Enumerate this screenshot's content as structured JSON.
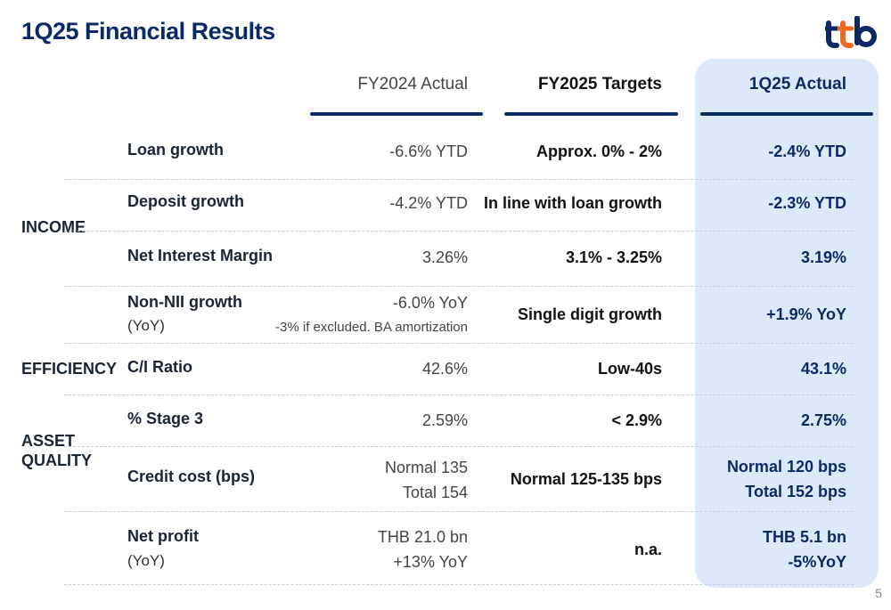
{
  "title": "1Q25 Financial Results",
  "logo_text": "ttb",
  "brand_color": "#0a2a66",
  "logo_colors": [
    "#0a2a66",
    "#f26a21"
  ],
  "highlight_color": "#dbe9fb",
  "columns": {
    "fy2024": "FY2024 Actual",
    "fy2025": "FY2025 Targets",
    "q125": "1Q25 Actual"
  },
  "categories": {
    "income": "INCOME",
    "efficiency": "EFFICIENCY",
    "asset_quality_1": "ASSET",
    "asset_quality_2": "QUALITY"
  },
  "rows": [
    {
      "metric": "Loan growth",
      "fy2024": "-6.6% YTD",
      "fy2025": "Approx. 0% - 2%",
      "q125": "-2.4% YTD"
    },
    {
      "metric": "Deposit growth",
      "fy2024": "-4.2% YTD",
      "fy2025": "In line with loan growth",
      "q125": "-2.3% YTD"
    },
    {
      "metric": "Net Interest Margin",
      "fy2024": "3.26%",
      "fy2025": "3.1% - 3.25%",
      "q125": "3.19%"
    },
    {
      "metric": "Non-NII growth",
      "metric_sub": "(YoY)",
      "fy2024": "-6.0% YoY",
      "fy2024_note": "-3% if excluded. BA amortization",
      "fy2025": "Single digit growth",
      "q125": "+1.9% YoY"
    },
    {
      "metric": "C/I Ratio",
      "fy2024": "42.6%",
      "fy2025": "Low-40s",
      "q125": "43.1%"
    },
    {
      "metric": "% Stage 3",
      "fy2024": "2.59%",
      "fy2025": "< 2.9%",
      "q125": "2.75%"
    },
    {
      "metric": "Credit cost (bps)",
      "fy2024": "Normal 135",
      "fy2024_2": "Total 154",
      "fy2025": "Normal 125-135 bps",
      "q125": "Normal 120 bps",
      "q125_2": "Total 152 bps"
    },
    {
      "metric": "Net profit",
      "metric_sub": "(YoY)",
      "fy2024": "THB 21.0 bn",
      "fy2024_2": "+13% YoY",
      "fy2025": "n.a.",
      "q125": "THB 5.1 bn",
      "q125_2": "-5%YoY"
    }
  ],
  "page_number": "5"
}
